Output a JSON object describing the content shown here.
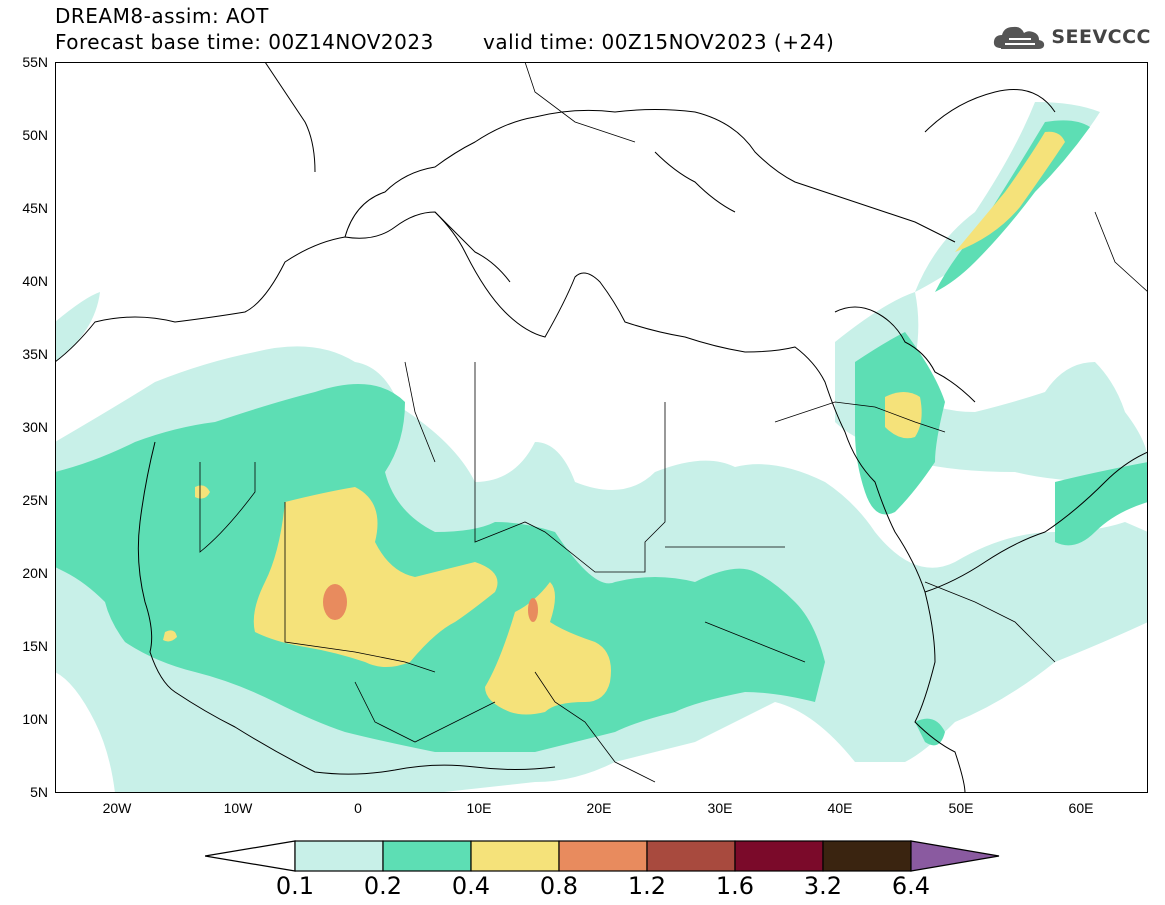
{
  "header": {
    "title_line1": "DREAM8-assim: AOT",
    "title_line2": "Forecast base time: 00Z14NOV2023",
    "title_line3": "valid time: 00Z15NOV2023 (+24)",
    "logo_text": "SEEVCCC",
    "logo_icon": "cloud-icon"
  },
  "axes": {
    "y_labels": [
      "55N",
      "50N",
      "45N",
      "40N",
      "35N",
      "30N",
      "25N",
      "20N",
      "15N",
      "10N",
      "5N"
    ],
    "x_labels": [
      "20W",
      "10W",
      "0",
      "10E",
      "20E",
      "30E",
      "40E",
      "50E",
      "60E"
    ],
    "lon_range": [
      -25,
      65
    ],
    "lat_range": [
      5,
      55
    ]
  },
  "colorbar": {
    "labels": [
      "0.1",
      "0.2",
      "0.4",
      "0.8",
      "1.2",
      "1.6",
      "3.2",
      "6.4"
    ],
    "colors": [
      "#ffffff",
      "#c8f0e8",
      "#5ddeb4",
      "#f5e27a",
      "#e88b5e",
      "#a84a3e",
      "#7b0a2a",
      "#3a2410",
      "#8a5aa0"
    ]
  },
  "map_colors": {
    "level_0_1": "#c8f0e8",
    "level_0_2": "#5ddeb4",
    "level_0_4": "#f5e27a",
    "level_0_8": "#e88b5e"
  }
}
